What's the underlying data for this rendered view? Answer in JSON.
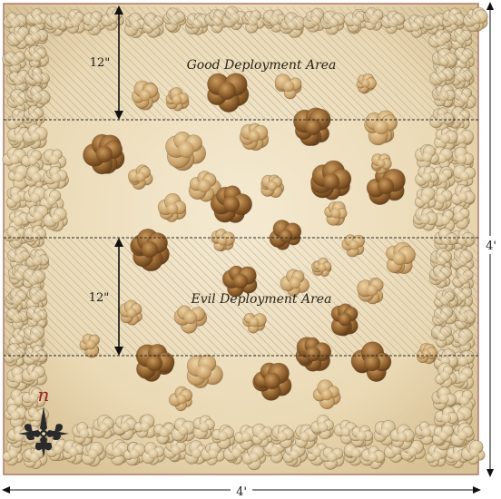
{
  "map": {
    "zones": {
      "good_label": "Good Deployment Area",
      "evil_label": "Evil Deployment Area"
    },
    "dimensions": {
      "zone_depth_top": "12\"",
      "zone_depth_middle": "12\"",
      "board_width": "4'",
      "board_height": "4'"
    },
    "compass": {
      "north_label": "n"
    },
    "colors": {
      "parchment": "#efe2c3",
      "forest_light": "#d9c9a2",
      "forest_dark": "#8a5d2b",
      "border": "#b07a6a",
      "compass_red": "#9b1c1c"
    }
  }
}
